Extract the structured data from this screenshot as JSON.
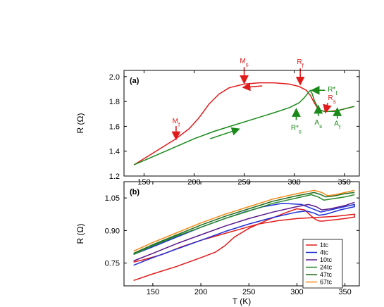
{
  "chart_data": [
    {
      "panel": "(a)",
      "type": "line",
      "xlabel": "",
      "ylabel": "R (Ω)",
      "xlim": [
        130,
        365
      ],
      "ylim": [
        1.2,
        2.05
      ],
      "xticks": [
        150,
        200,
        250,
        300,
        350
      ],
      "yticks": [
        1.2,
        1.4,
        1.6,
        1.8,
        2.0
      ],
      "ytick_labels": [
        "1.2",
        "1.4",
        "1.6",
        "1.8",
        "2.0"
      ],
      "series": [
        {
          "name": "",
          "color": "#e01b1b",
          "x": [
            140,
            160,
            180,
            195,
            205,
            215,
            225,
            235,
            250,
            265,
            280,
            295,
            305,
            312,
            316,
            320,
            323,
            326,
            330,
            335,
            345,
            355,
            360
          ],
          "y": [
            1.29,
            1.39,
            1.49,
            1.58,
            1.67,
            1.78,
            1.86,
            1.91,
            1.94,
            1.95,
            1.95,
            1.94,
            1.92,
            1.89,
            1.85,
            1.79,
            1.75,
            1.73,
            1.72,
            1.72,
            1.73,
            1.75,
            1.76
          ]
        },
        {
          "name": "",
          "color": "#1a8a1a",
          "x": [
            140,
            160,
            180,
            200,
            220,
            240,
            260,
            280,
            295,
            305,
            310,
            314,
            316,
            318,
            320,
            323,
            326,
            330,
            340,
            350,
            360
          ],
          "y": [
            1.29,
            1.36,
            1.43,
            1.5,
            1.56,
            1.61,
            1.66,
            1.71,
            1.75,
            1.79,
            1.83,
            1.87,
            1.89,
            1.86,
            1.81,
            1.76,
            1.73,
            1.72,
            1.72,
            1.74,
            1.76
          ]
        }
      ],
      "annotations": [
        {
          "text": "M",
          "sub": "s",
          "color": "#e01b1b",
          "x": 250,
          "y": 1.94
        },
        {
          "text": "R",
          "sub": "f",
          "color": "#e01b1b",
          "x": 306,
          "y": 1.93
        },
        {
          "text": "M",
          "sub": "f",
          "color": "#e01b1b",
          "x": 182,
          "y": 1.5
        },
        {
          "text": "R",
          "sub": "s",
          "color": "#e01b1b",
          "x": 332,
          "y": 1.72
        },
        {
          "text": "R*",
          "sub": "f",
          "color": "#1a8a1a",
          "x": 318,
          "y": 1.89
        },
        {
          "text": "R*",
          "sub": "s",
          "color": "#1a8a1a",
          "x": 302,
          "y": 1.73
        },
        {
          "text": "A",
          "sub": "s",
          "color": "#1a8a1a",
          "x": 324,
          "y": 1.75
        },
        {
          "text": "A",
          "sub": "f",
          "color": "#1a8a1a",
          "x": 343,
          "y": 1.73
        }
      ]
    },
    {
      "panel": "(b)",
      "type": "line",
      "xlabel": "T (K)",
      "ylabel": "R (Ω)",
      "xlim": [
        120,
        365
      ],
      "ylim": [
        0.645,
        1.125
      ],
      "xticks": [
        150,
        200,
        250,
        300,
        350
      ],
      "yticks": [
        0.75,
        0.9,
        1.05
      ],
      "ytick_labels": [
        "0.75",
        "0.90",
        "1.05"
      ],
      "legend_position": "bottom-right",
      "series": [
        {
          "name": "1tc",
          "color": "#e01b1b",
          "x": [
            130,
            150,
            175,
            200,
            215,
            225,
            235,
            250,
            270,
            290,
            300,
            308,
            313,
            318,
            322,
            326,
            330,
            340,
            350,
            360,
            360,
            340,
            320,
            300,
            280,
            260,
            240,
            220,
            200,
            180,
            160,
            140,
            130
          ],
          "y": [
            0.67,
            0.7,
            0.735,
            0.775,
            0.8,
            0.83,
            0.87,
            0.91,
            0.95,
            0.985,
            1.0,
            0.995,
            0.975,
            0.955,
            0.945,
            0.943,
            0.945,
            0.95,
            0.955,
            0.962,
            0.975,
            0.965,
            0.96,
            0.955,
            0.945,
            0.93,
            0.905,
            0.88,
            0.855,
            0.825,
            0.79,
            0.765,
            0.755
          ]
        },
        {
          "name": "4tc",
          "color": "#1f2fd6",
          "x": [
            130,
            150,
            175,
            200,
            225,
            250,
            275,
            300,
            310,
            318,
            323,
            330,
            345,
            360,
            360,
            345,
            325,
            305,
            285,
            265,
            245,
            225,
            200,
            175,
            150,
            130
          ],
          "y": [
            0.74,
            0.775,
            0.815,
            0.855,
            0.895,
            0.93,
            0.96,
            0.985,
            0.99,
            0.98,
            0.97,
            0.975,
            0.995,
            1.01,
            1.02,
            1.005,
            0.985,
            1.02,
            1.025,
            1.01,
            0.985,
            0.955,
            0.915,
            0.87,
            0.825,
            0.79
          ]
        },
        {
          "name": "10tc",
          "color": "#5a1a8a",
          "x": [
            130,
            150,
            175,
            200,
            225,
            250,
            275,
            300,
            312,
            320,
            326,
            335,
            350,
            360
          ],
          "y": [
            0.76,
            0.795,
            0.84,
            0.88,
            0.92,
            0.955,
            0.985,
            1.01,
            1.02,
            1.01,
            0.995,
            1.0,
            1.015,
            1.03
          ]
        },
        {
          "name": "24tc",
          "color": "#2a8a2a",
          "x": [
            130,
            150,
            175,
            200,
            225,
            250,
            275,
            300,
            315,
            322,
            328,
            335,
            350,
            360
          ],
          "y": [
            0.79,
            0.83,
            0.875,
            0.915,
            0.955,
            0.99,
            1.025,
            1.05,
            1.065,
            1.055,
            1.04,
            1.045,
            1.055,
            1.065
          ]
        },
        {
          "name": "47tc",
          "color": "#1e6e1e",
          "x": [
            130,
            150,
            175,
            200,
            225,
            250,
            275,
            300,
            318,
            325,
            330,
            340,
            350,
            360
          ],
          "y": [
            0.795,
            0.835,
            0.88,
            0.925,
            0.965,
            1.0,
            1.035,
            1.06,
            1.075,
            1.065,
            1.055,
            1.06,
            1.07,
            1.075
          ]
        },
        {
          "name": "67tc",
          "color": "#f28a1a",
          "x": [
            130,
            150,
            175,
            200,
            225,
            250,
            275,
            300,
            318,
            326,
            332,
            340,
            350,
            360
          ],
          "y": [
            0.805,
            0.845,
            0.89,
            0.935,
            0.975,
            1.01,
            1.045,
            1.07,
            1.085,
            1.075,
            1.06,
            1.065,
            1.075,
            1.085
          ]
        }
      ]
    }
  ]
}
